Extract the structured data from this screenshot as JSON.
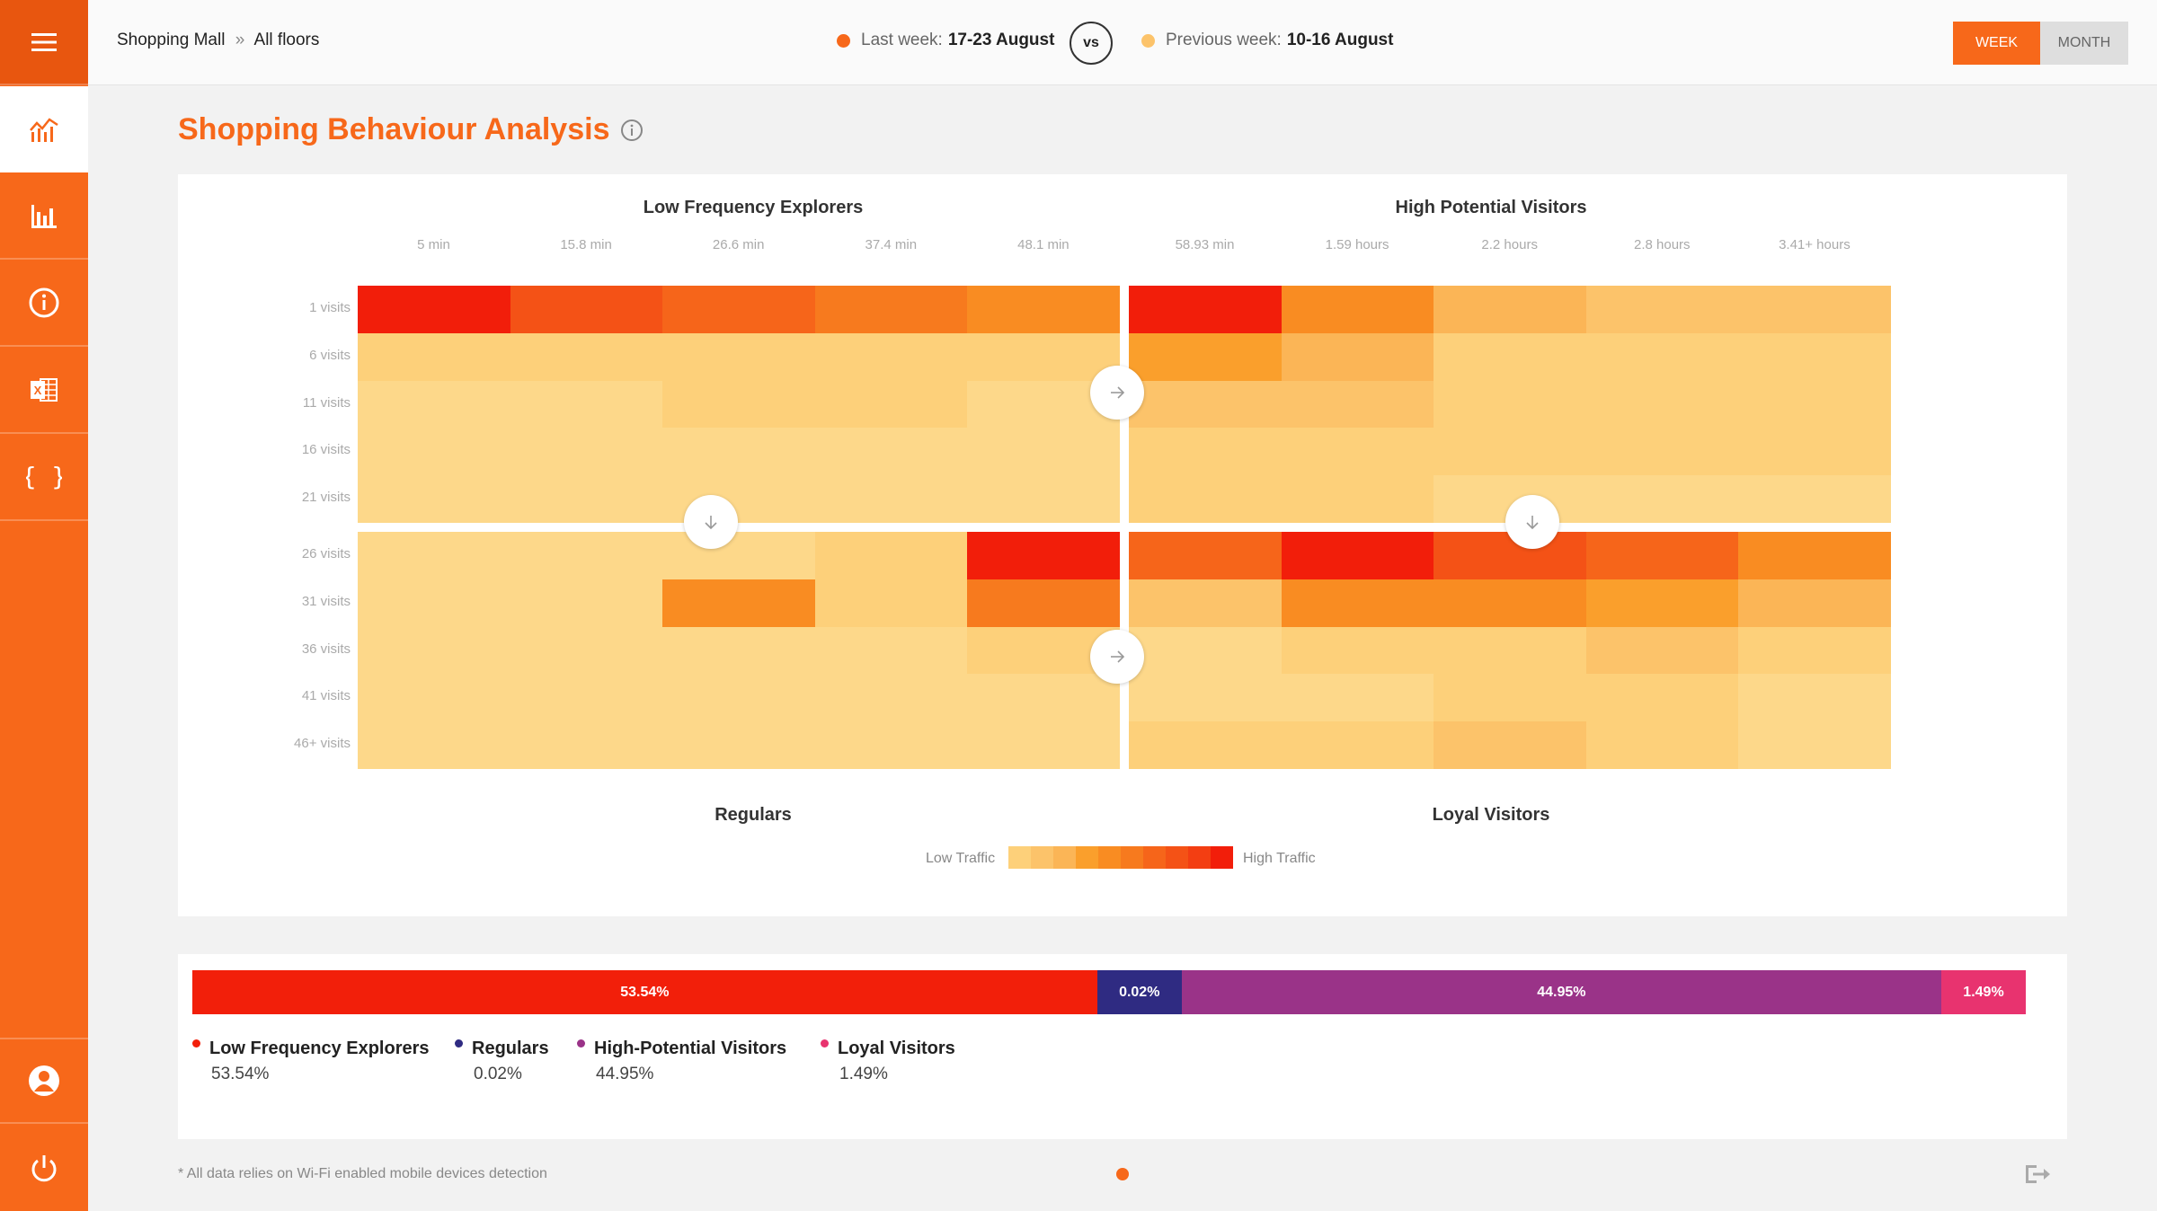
{
  "breadcrumb": {
    "root": "Shopping Mall",
    "separator": "»",
    "current": "All floors"
  },
  "weeks": {
    "last": {
      "label": "Last week:",
      "range": "17-23 August",
      "color": "#f7681a"
    },
    "previous": {
      "label": "Previous week:",
      "range": "10-16 August",
      "color": "#fcc36a"
    },
    "vs_label": "vs"
  },
  "period": {
    "week_label": "WEEK",
    "month_label": "MONTH",
    "selected": "WEEK"
  },
  "sidebar": {
    "items": [
      {
        "name": "menu",
        "icon": "hamburger-icon"
      },
      {
        "name": "analysis",
        "icon": "line-chart-icon",
        "active": true
      },
      {
        "name": "reports",
        "icon": "bar-chart-icon"
      },
      {
        "name": "info",
        "icon": "info-icon"
      },
      {
        "name": "excel",
        "icon": "excel-icon"
      },
      {
        "name": "api",
        "icon": "braces-icon"
      },
      {
        "name": "user",
        "icon": "user-icon"
      },
      {
        "name": "power",
        "icon": "power-icon"
      }
    ],
    "color": "#f7681a"
  },
  "page_title": "Shopping Behaviour Analysis",
  "heatmap": {
    "quadrants": {
      "top_left": "Low Frequency Explorers",
      "top_right": "High Potential Visitors",
      "bottom_left": "Regulars",
      "bottom_right": "Loyal Visitors"
    },
    "columns": [
      "5 min",
      "15.8 min",
      "26.6 min",
      "37.4 min",
      "48.1 min",
      "58.93 min",
      "1.59 hours",
      "2.2 hours",
      "2.8 hours",
      "3.41+ hours"
    ],
    "rows": [
      "1 visits",
      "6 visits",
      "11 visits",
      "16 visits",
      "21 visits",
      "26 visits",
      "31 visits",
      "36 visits",
      "41 visits",
      "46+ visits"
    ],
    "levels": [
      [
        10,
        8,
        7,
        6,
        5,
        10,
        5,
        3,
        2,
        2
      ],
      [
        1,
        1,
        1,
        1,
        1,
        4,
        3,
        1,
        1,
        1
      ],
      [
        0,
        0,
        1,
        1,
        0,
        2,
        2,
        1,
        1,
        1
      ],
      [
        0,
        0,
        0,
        0,
        0,
        1,
        1,
        1,
        1,
        1
      ],
      [
        0,
        0,
        0,
        0,
        0,
        1,
        1,
        0,
        0,
        0
      ],
      [
        0,
        0,
        0,
        1,
        10,
        7,
        10,
        8,
        7,
        5
      ],
      [
        0,
        0,
        5,
        1,
        6,
        2,
        5,
        5,
        4,
        3
      ],
      [
        0,
        0,
        0,
        0,
        1,
        0,
        1,
        1,
        2,
        1
      ],
      [
        0,
        0,
        0,
        0,
        0,
        0,
        0,
        1,
        1,
        0
      ],
      [
        0,
        0,
        0,
        0,
        0,
        1,
        1,
        2,
        1,
        0
      ]
    ],
    "scale_colors": [
      "#fdd88a",
      "#fdd07a",
      "#fcc36a",
      "#fbb556",
      "#fa9f2c",
      "#f98c22",
      "#f77a1e",
      "#f6651a",
      "#f45216",
      "#f33e12",
      "#f21e0a"
    ],
    "legend_low": "Low Traffic",
    "legend_high": "High Traffic"
  },
  "distribution": {
    "segments": [
      {
        "name": "Low Frequency Explorers",
        "value": 53.54,
        "label": "53.54%",
        "color": "#f21f0a"
      },
      {
        "name": "Regulars",
        "value": 0.02,
        "label": "0.02%",
        "color": "#2f2b82"
      },
      {
        "name": "High-Potential Visitors",
        "value": 44.95,
        "label": "44.95%",
        "color": "#9a3388"
      },
      {
        "name": "Loyal Visitors",
        "value": 1.49,
        "label": "1.49%",
        "color": "#e8336f"
      }
    ]
  },
  "footnote": "* All data relies on Wi-Fi enabled mobile devices detection"
}
